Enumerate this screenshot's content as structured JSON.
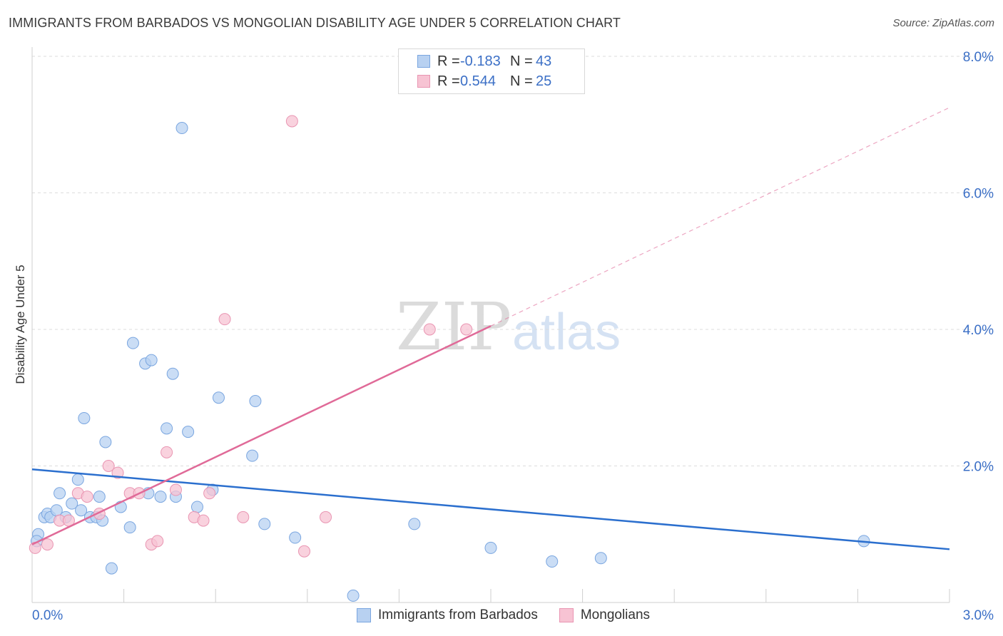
{
  "header": {
    "title": "IMMIGRANTS FROM BARBADOS VS MONGOLIAN DISABILITY AGE UNDER 5 CORRELATION CHART",
    "source": "Source: ZipAtlas.com"
  },
  "stats": [
    {
      "r_label": "R =",
      "r_value": "-0.183",
      "n_label": "N =",
      "n_value": "43"
    },
    {
      "r_label": "R =",
      "r_value": "0.544",
      "n_label": "N =",
      "n_value": "25"
    }
  ],
  "colors": {
    "blue_fill": "#b8d1f1",
    "blue_stroke": "#7aa6e0",
    "blue_line": "#2b6fce",
    "pink_fill": "#f7c3d3",
    "pink_stroke": "#e995b2",
    "pink_line": "#e06a98",
    "tick_label": "#3b6fc6",
    "grid": "#dcdcdc"
  },
  "watermark": {
    "zip": "ZIP",
    "atlas": "atlas"
  },
  "chart_data": {
    "type": "scatter",
    "title": "IMMIGRANTS FROM BARBADOS VS MONGOLIAN DISABILITY AGE UNDER 5 CORRELATION CHART",
    "xlabel": "",
    "ylabel": "Disability Age Under 5",
    "xlim": [
      0,
      3.0
    ],
    "ylim": [
      0,
      8.0
    ],
    "x_tick_labels": [
      "0.0%",
      "3.0%"
    ],
    "y_ticks": [
      2.0,
      4.0,
      6.0,
      8.0
    ],
    "y_tick_labels": [
      "2.0%",
      "4.0%",
      "6.0%",
      "8.0%"
    ],
    "grid": true,
    "legend_position": "bottom",
    "series": [
      {
        "name": "Immigrants from Barbados",
        "color": "#b8d1f1",
        "points": [
          [
            0.02,
            1.0
          ],
          [
            0.04,
            1.25
          ],
          [
            0.05,
            1.3
          ],
          [
            0.06,
            1.25
          ],
          [
            0.08,
            1.35
          ],
          [
            0.09,
            1.6
          ],
          [
            0.11,
            1.25
          ],
          [
            0.13,
            1.45
          ],
          [
            0.15,
            1.8
          ],
          [
            0.16,
            1.35
          ],
          [
            0.17,
            2.7
          ],
          [
            0.19,
            1.25
          ],
          [
            0.21,
            1.25
          ],
          [
            0.22,
            1.55
          ],
          [
            0.23,
            1.2
          ],
          [
            0.24,
            2.35
          ],
          [
            0.26,
            0.5
          ],
          [
            0.29,
            1.4
          ],
          [
            0.32,
            1.1
          ],
          [
            0.33,
            3.8
          ],
          [
            0.37,
            3.5
          ],
          [
            0.38,
            1.6
          ],
          [
            0.39,
            3.55
          ],
          [
            0.42,
            1.55
          ],
          [
            0.44,
            2.55
          ],
          [
            0.46,
            3.35
          ],
          [
            0.47,
            1.55
          ],
          [
            0.49,
            6.95
          ],
          [
            0.51,
            2.5
          ],
          [
            0.54,
            1.4
          ],
          [
            0.59,
            1.65
          ],
          [
            0.61,
            3.0
          ],
          [
            0.72,
            2.15
          ],
          [
            0.73,
            2.95
          ],
          [
            0.76,
            1.15
          ],
          [
            0.86,
            0.95
          ],
          [
            1.05,
            0.1
          ],
          [
            1.25,
            1.15
          ],
          [
            1.5,
            0.8
          ],
          [
            1.7,
            0.6
          ],
          [
            1.86,
            0.65
          ],
          [
            2.72,
            0.9
          ],
          [
            0.015,
            0.9
          ]
        ],
        "trend": {
          "x": [
            0.0,
            3.0
          ],
          "y": [
            1.95,
            0.78
          ]
        }
      },
      {
        "name": "Mongolians",
        "color": "#f7c3d3",
        "points": [
          [
            0.01,
            0.8
          ],
          [
            0.05,
            0.85
          ],
          [
            0.09,
            1.2
          ],
          [
            0.12,
            1.2
          ],
          [
            0.15,
            1.6
          ],
          [
            0.18,
            1.55
          ],
          [
            0.22,
            1.3
          ],
          [
            0.25,
            2.0
          ],
          [
            0.28,
            1.9
          ],
          [
            0.32,
            1.6
          ],
          [
            0.35,
            1.6
          ],
          [
            0.39,
            0.85
          ],
          [
            0.41,
            0.9
          ],
          [
            0.44,
            2.2
          ],
          [
            0.47,
            1.65
          ],
          [
            0.53,
            1.25
          ],
          [
            0.56,
            1.2
          ],
          [
            0.58,
            1.6
          ],
          [
            0.63,
            4.15
          ],
          [
            0.69,
            1.25
          ],
          [
            0.85,
            7.05
          ],
          [
            0.89,
            0.75
          ],
          [
            0.96,
            1.25
          ],
          [
            1.3,
            4.0
          ],
          [
            1.42,
            4.0
          ]
        ],
        "trend": {
          "x": [
            0.0,
            1.5
          ],
          "y": [
            0.85,
            4.05
          ]
        },
        "trend_extension": {
          "x": [
            1.5,
            3.0
          ],
          "y": [
            4.05,
            7.25
          ]
        }
      }
    ]
  }
}
